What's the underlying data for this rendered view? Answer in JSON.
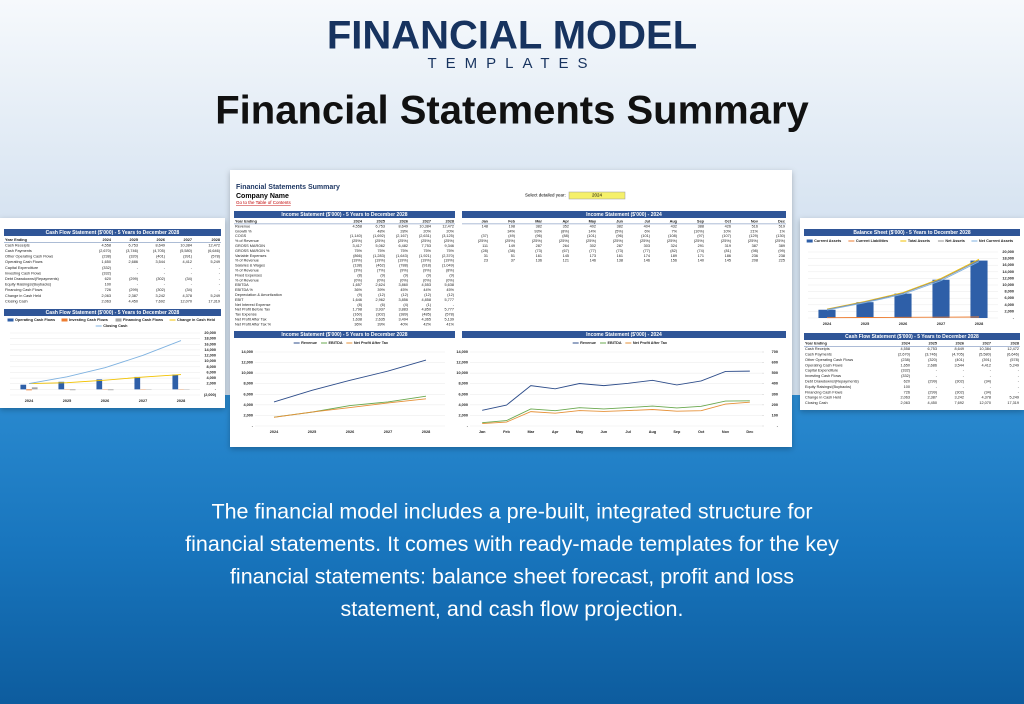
{
  "brand": {
    "name": "FINANCIAL MODEL",
    "sub": "TEMPLATES"
  },
  "headline": "Financial Statements Summary",
  "sheet": {
    "title": "Financial Statements Summary",
    "company": "Company Name",
    "link": "Go to the Table of Contents",
    "select_label": "Select detailed year:",
    "select_value": "2024",
    "annual_table": {
      "title": "Income Statement ($'000) - 5 Years to December 2028",
      "header": [
        "Year Ending",
        "2024",
        "2025",
        "2026",
        "2027",
        "2028"
      ],
      "rows": [
        [
          "Revenue",
          "4,558",
          "6,753",
          "8,649",
          "10,384",
          "12,472"
        ],
        [
          "Growth %",
          null,
          "48%",
          "28%",
          "20%",
          "20%"
        ],
        [
          "COGS",
          "(1,140)",
          "(1,692)",
          "(2,167)",
          "(2,631)",
          "(3,125)"
        ],
        [
          "% of Revenue",
          "(25%)",
          "(25%)",
          "(25%)",
          "(25%)",
          "(25%)"
        ],
        [
          "GROSS MARGIN",
          "3,417",
          "5,062",
          "6,482",
          "7,753",
          "9,346"
        ],
        [
          "GROSS MARGIN %",
          "75%",
          "75%",
          "75%",
          "75%",
          "75%"
        ],
        [
          "Variable Expenses",
          "(866)",
          "(1,283)",
          "(1,643)",
          "(1,921)",
          "(2,370)"
        ],
        [
          "% of Revenue",
          "(19%)",
          "(19%)",
          "(19%)",
          "(19%)",
          "(19%)"
        ],
        [
          "Salaries & Wages",
          "(138)",
          "(462)",
          "(788)",
          "(918)",
          "(1,049)"
        ],
        [
          "% of Revenue",
          "(3%)",
          "(7%)",
          "(9%)",
          "(9%)",
          "(8%)"
        ],
        [
          "Fixed Expenses",
          "(8)",
          "(9)",
          "(9)",
          "(9)",
          "(9)"
        ],
        [
          "% of Revenue",
          "(0%)",
          "(0%)",
          "(0%)",
          "(0%)",
          "(0%)"
        ],
        [
          "EBITDA",
          "1,657",
          "2,624",
          "3,860",
          "4,553",
          "5,638"
        ],
        [
          "EBITDA %",
          "36%",
          "39%",
          "45%",
          "44%",
          "45%"
        ],
        [
          "Depreciation & Amortization",
          "(9)",
          "(12)",
          "(12)",
          "(12)",
          "(12)"
        ],
        [
          "EBIT",
          "1,646",
          "2,962",
          "3,856",
          "4,858",
          "5,777"
        ],
        [
          "Net Interest Expense",
          "(8)",
          "(6)",
          "(4)",
          "(1)",
          "-"
        ],
        [
          "Net Profit Before Tax",
          "1,798",
          "3,937",
          "3,883",
          "4,850",
          "5,777"
        ],
        [
          "Tax Expense",
          "(160)",
          "(302)",
          "(389)",
          "(485)",
          "(578)"
        ],
        [
          "Net Profit After Tax",
          "1,638",
          "2,635",
          "3,494",
          "4,365",
          "5,139"
        ],
        [
          "Net Profit After Tax %",
          "36%",
          "39%",
          "40%",
          "42%",
          "41%"
        ]
      ]
    },
    "monthly_table": {
      "title": "Income Statement ($'000) - 2024",
      "header": [
        "Jan",
        "Feb",
        "Mar",
        "Apr",
        "May",
        "Jun",
        "Jul",
        "Aug",
        "Sep",
        "Oct",
        "Nov",
        "Dec"
      ],
      "rows": [
        [
          "148",
          "198",
          "382",
          "352",
          "402",
          "382",
          "404",
          "432",
          "388",
          "426",
          "516",
          "519"
        ],
        [
          null,
          "34%",
          "93%",
          "(8%)",
          "14%",
          "(5%)",
          "6%",
          "7%",
          "(10%)",
          "10%",
          "21%",
          "1%"
        ],
        [
          "(37)",
          "(49)",
          "(96)",
          "(88)",
          "(101)",
          "(96)",
          "(101)",
          "(108)",
          "(97)",
          "(107)",
          "(129)",
          "(130)"
        ],
        [
          "(25%)",
          "(25%)",
          "(25%)",
          "(25%)",
          "(25%)",
          "(25%)",
          "(25%)",
          "(25%)",
          "(25%)",
          "(25%)",
          "(25%)",
          "(25%)"
        ],
        [
          "111",
          "149",
          "287",
          "264",
          "302",
          "287",
          "303",
          "324",
          "291",
          "319",
          "387",
          "389"
        ],
        [
          "(28)",
          "(38)",
          "(73)",
          "(67)",
          "(77)",
          "(73)",
          "(77)",
          "(82)",
          "(74)",
          "(81)",
          "(98)",
          "(99)"
        ],
        [
          "31",
          "51",
          "161",
          "145",
          "173",
          "161",
          "174",
          "189",
          "171",
          "186",
          "236",
          "238"
        ],
        [
          "23",
          "37",
          "136",
          "121",
          "146",
          "138",
          "146",
          "156",
          "140",
          "145",
          "208",
          "225"
        ]
      ]
    },
    "left_table": {
      "title": "Cash Flow Statement ($'000) - 5 Years to December 2028",
      "header": [
        "Year Ending",
        "2024",
        "2025",
        "2026",
        "2027",
        "2028"
      ],
      "rows": [
        [
          "Cash Receipts",
          "4,558",
          "6,753",
          "8,649",
          "10,384",
          "12,472"
        ],
        [
          "Cash Payments",
          "(2,670)",
          "(3,746)",
          "(4,705)",
          "(5,580)",
          "(6,646)"
        ],
        [
          "Other Operating Cash Flows",
          "(238)",
          "(320)",
          "(401)",
          "(391)",
          "(578)"
        ],
        [
          "Operating Cash Flows",
          "1,650",
          "2,686",
          "3,544",
          "4,412",
          "5,249"
        ],
        [
          "Capital Expenditure",
          "(332)",
          "-",
          "-",
          "-",
          "-"
        ],
        [
          "Investing Cash Flows",
          "(332)",
          "-",
          "-",
          "-",
          "-"
        ],
        [
          "Debt Drawdowns/(Repayments)",
          "620",
          "(299)",
          "(302)",
          "(34)",
          "-"
        ],
        [
          "Equity Raisings/(Buybacks)",
          "100",
          "-",
          "-",
          "-",
          "-"
        ],
        [
          "Financing Cash Flows",
          "726",
          "(299)",
          "(302)",
          "(34)",
          "-"
        ],
        [
          "Change in Cash Held",
          "2,063",
          "2,387",
          "3,242",
          "4,378",
          "5,249"
        ],
        [
          "Closing Cash",
          "2,063",
          "4,450",
          "7,692",
          "12,070",
          "17,319"
        ]
      ]
    },
    "left_chart_title": "Cash Flow Statement ($'000) - 5 Years to December 2028",
    "annual_chart_title": "Income Statement ($'000) - 5 Years to December 2028",
    "monthly_chart_title": "Income Statement ($'000) - 2024",
    "right_chart_title": "Balance Sheet ($'000) - 5 Years to December 2028",
    "right_table": {
      "title": "Cash Flow Statement ($'000) - 5 Years to December 2028",
      "header": [
        "Year Ending",
        "2024",
        "2025",
        "2026",
        "2027",
        "2028"
      ],
      "rows": [
        [
          "Cash Receipts",
          "4,558",
          "6,753",
          "8,649",
          "10,384",
          "12,472"
        ],
        [
          "Cash Payments",
          "(2,670)",
          "(3,746)",
          "(4,705)",
          "(5,580)",
          "(6,646)"
        ],
        [
          "Other Operating Cash Flows",
          "(238)",
          "(320)",
          "(401)",
          "(391)",
          "(578)"
        ],
        [
          "Operating Cash Flows",
          "1,650",
          "2,686",
          "3,544",
          "4,412",
          "5,249"
        ],
        [
          "Capital Expenditure",
          "(332)",
          "-",
          "-",
          "-",
          "-"
        ],
        [
          "Investing Cash Flows",
          "(332)",
          "-",
          "-",
          "-",
          "-"
        ],
        [
          "Debt Drawdowns/(Repayments)",
          "620",
          "(299)",
          "(302)",
          "(34)",
          "-"
        ],
        [
          "Equity Raisings/(Buybacks)",
          "100",
          "-",
          "-",
          "-",
          "-"
        ],
        [
          "Financing Cash Flows",
          "726",
          "(299)",
          "(302)",
          "(34)",
          "-"
        ],
        [
          "Change in Cash Held",
          "2,063",
          "2,387",
          "3,242",
          "4,378",
          "5,249"
        ],
        [
          "Closing Cash",
          "2,063",
          "4,450",
          "7,692",
          "12,070",
          "17,319"
        ]
      ]
    }
  },
  "chart_data": [
    {
      "type": "combo",
      "y_axis_side": "right",
      "grid": true,
      "categories": [
        "2024",
        "2025",
        "2026",
        "2027",
        "2028"
      ],
      "ylim": [
        -2000,
        20000
      ],
      "yticks": [
        {
          "value": -2000,
          "label": "(2,000)"
        },
        {
          "value": 0,
          "label": "-"
        },
        {
          "value": 2000,
          "label": "2,000"
        },
        {
          "value": 4000,
          "label": "4,000"
        },
        {
          "value": 6000,
          "label": "6,000"
        },
        {
          "value": 8000,
          "label": "8,000"
        },
        {
          "value": 10000,
          "label": "10,000"
        },
        {
          "value": 12000,
          "label": "12,000"
        },
        {
          "value": 14000,
          "label": "14,000"
        },
        {
          "value": 16000,
          "label": "16,000"
        },
        {
          "value": 18000,
          "label": "18,000"
        },
        {
          "value": 20000,
          "label": "20,000"
        }
      ],
      "series": [
        {
          "name": "Operating Cash Flows",
          "kind": "bar",
          "color": "#2e5fa8",
          "values": [
            1650,
            2686,
            3544,
            4412,
            5249
          ]
        },
        {
          "name": "Investing Cash Flows",
          "kind": "bar",
          "color": "#ed7d31",
          "values": [
            -332,
            0,
            0,
            0,
            0
          ]
        },
        {
          "name": "Financing Cash Flows",
          "kind": "bar",
          "color": "#a5a5a5",
          "values": [
            726,
            -299,
            -302,
            -34,
            0
          ]
        },
        {
          "name": "Change in Cash Held",
          "kind": "line",
          "color": "#f2c200",
          "values": [
            2063,
            2387,
            3242,
            4378,
            5249
          ]
        },
        {
          "name": "Closing Cash",
          "kind": "line",
          "color": "#7fb2e0",
          "values": [
            2063,
            4450,
            7692,
            12070,
            17319
          ]
        }
      ]
    },
    {
      "type": "line",
      "y_axis_side": "left",
      "grid": true,
      "categories": [
        "2024",
        "2025",
        "2026",
        "2027",
        "2028"
      ],
      "ylim": [
        0,
        14000
      ],
      "yticks": [
        {
          "value": 0,
          "label": "-"
        },
        {
          "value": 2000,
          "label": "2,000"
        },
        {
          "value": 4000,
          "label": "4,000"
        },
        {
          "value": 6000,
          "label": "6,000"
        },
        {
          "value": 8000,
          "label": "8,000"
        },
        {
          "value": 10000,
          "label": "10,000"
        },
        {
          "value": 12000,
          "label": "12,000"
        },
        {
          "value": 14000,
          "label": "14,000"
        }
      ],
      "series": [
        {
          "name": "Revenue",
          "kind": "line",
          "color": "#2e4d8a",
          "values": [
            4558,
            6753,
            8649,
            10384,
            12472
          ]
        },
        {
          "name": "EBITDA",
          "kind": "line",
          "color": "#6aa84f",
          "values": [
            1657,
            2624,
            3860,
            4553,
            5638
          ]
        },
        {
          "name": "Net Profit After Tax",
          "kind": "line",
          "color": "#e69138",
          "values": [
            1638,
            2635,
            3494,
            4365,
            5139
          ]
        }
      ]
    },
    {
      "type": "line",
      "y_axis_side": "left",
      "grid": true,
      "categories": [
        "Jan",
        "Feb",
        "Mar",
        "Apr",
        "May",
        "Jun",
        "Jul",
        "Aug",
        "Sep",
        "Oct",
        "Nov",
        "Dec"
      ],
      "ylim": [
        0,
        14000
      ],
      "yticks": [
        {
          "value": 0,
          "label": "-"
        },
        {
          "value": 2000,
          "label": "2,000"
        },
        {
          "value": 4000,
          "label": "4,000"
        },
        {
          "value": 6000,
          "label": "6,000"
        },
        {
          "value": 8000,
          "label": "8,000"
        },
        {
          "value": 10000,
          "label": "10,000"
        },
        {
          "value": 12000,
          "label": "12,000"
        },
        {
          "value": 14000,
          "label": "14,000"
        }
      ],
      "y2lim": [
        0,
        700
      ],
      "y2ticks": [
        {
          "value": 0,
          "label": "-"
        },
        100,
        200,
        300,
        400,
        500,
        600,
        700
      ],
      "series": [
        {
          "name": "Revenue",
          "kind": "line",
          "axis": "y2",
          "color": "#2e4d8a",
          "values": [
            148,
            198,
            382,
            352,
            402,
            382,
            404,
            432,
            388,
            426,
            516,
            519
          ]
        },
        {
          "name": "EBITDA",
          "kind": "line",
          "axis": "y2",
          "color": "#6aa84f",
          "values": [
            31,
            51,
            161,
            145,
            173,
            161,
            174,
            189,
            171,
            186,
            236,
            238
          ]
        },
        {
          "name": "Net Profit After Tax",
          "kind": "line",
          "axis": "y2",
          "color": "#e69138",
          "values": [
            23,
            37,
            136,
            121,
            146,
            138,
            146,
            156,
            140,
            145,
            208,
            225
          ]
        }
      ]
    },
    {
      "type": "combo",
      "y_axis_side": "right",
      "grid": true,
      "categories": [
        "2024",
        "2025",
        "2026",
        "2027",
        "2028"
      ],
      "ylim": [
        0,
        20000
      ],
      "yticks": [
        {
          "value": 0,
          "label": "-"
        },
        {
          "value": 2000,
          "label": "2,000"
        },
        {
          "value": 4000,
          "label": "4,000"
        },
        {
          "value": 6000,
          "label": "6,000"
        },
        {
          "value": 8000,
          "label": "8,000"
        },
        {
          "value": 10000,
          "label": "10,000"
        },
        {
          "value": 12000,
          "label": "12,000"
        },
        {
          "value": 14000,
          "label": "14,000"
        },
        {
          "value": 16000,
          "label": "16,000"
        },
        {
          "value": 18000,
          "label": "18,000"
        },
        {
          "value": 20000,
          "label": "20,000"
        }
      ],
      "series": [
        {
          "name": "Current Assets",
          "kind": "bar",
          "color": "#2e5fa8",
          "values": [
            2500,
            4800,
            7400,
            11600,
            17400
          ]
        },
        {
          "name": "Current Liabilities",
          "kind": "line",
          "color": "#ed7d31",
          "values": [
            100,
            150,
            200,
            250,
            300
          ]
        },
        {
          "name": "Total Assets",
          "kind": "line",
          "color": "#f2c200",
          "values": [
            2700,
            5000,
            7700,
            12000,
            17800
          ]
        },
        {
          "name": "Net Assets",
          "kind": "line",
          "color": "#8e8e8e",
          "values": [
            2600,
            4850,
            7500,
            11750,
            17500
          ]
        },
        {
          "name": "Net Current Assets",
          "kind": "line",
          "color": "#7fb2e0",
          "values": [
            2400,
            4650,
            7200,
            11350,
            17100
          ]
        }
      ]
    }
  ],
  "description": [
    "The financial model includes a pre-built, integrated structure for",
    "financial statements. It comes with ready-made templates for the key",
    "financial statements: balance sheet forecast, profit and loss",
    "statement, and cash flow projection."
  ]
}
